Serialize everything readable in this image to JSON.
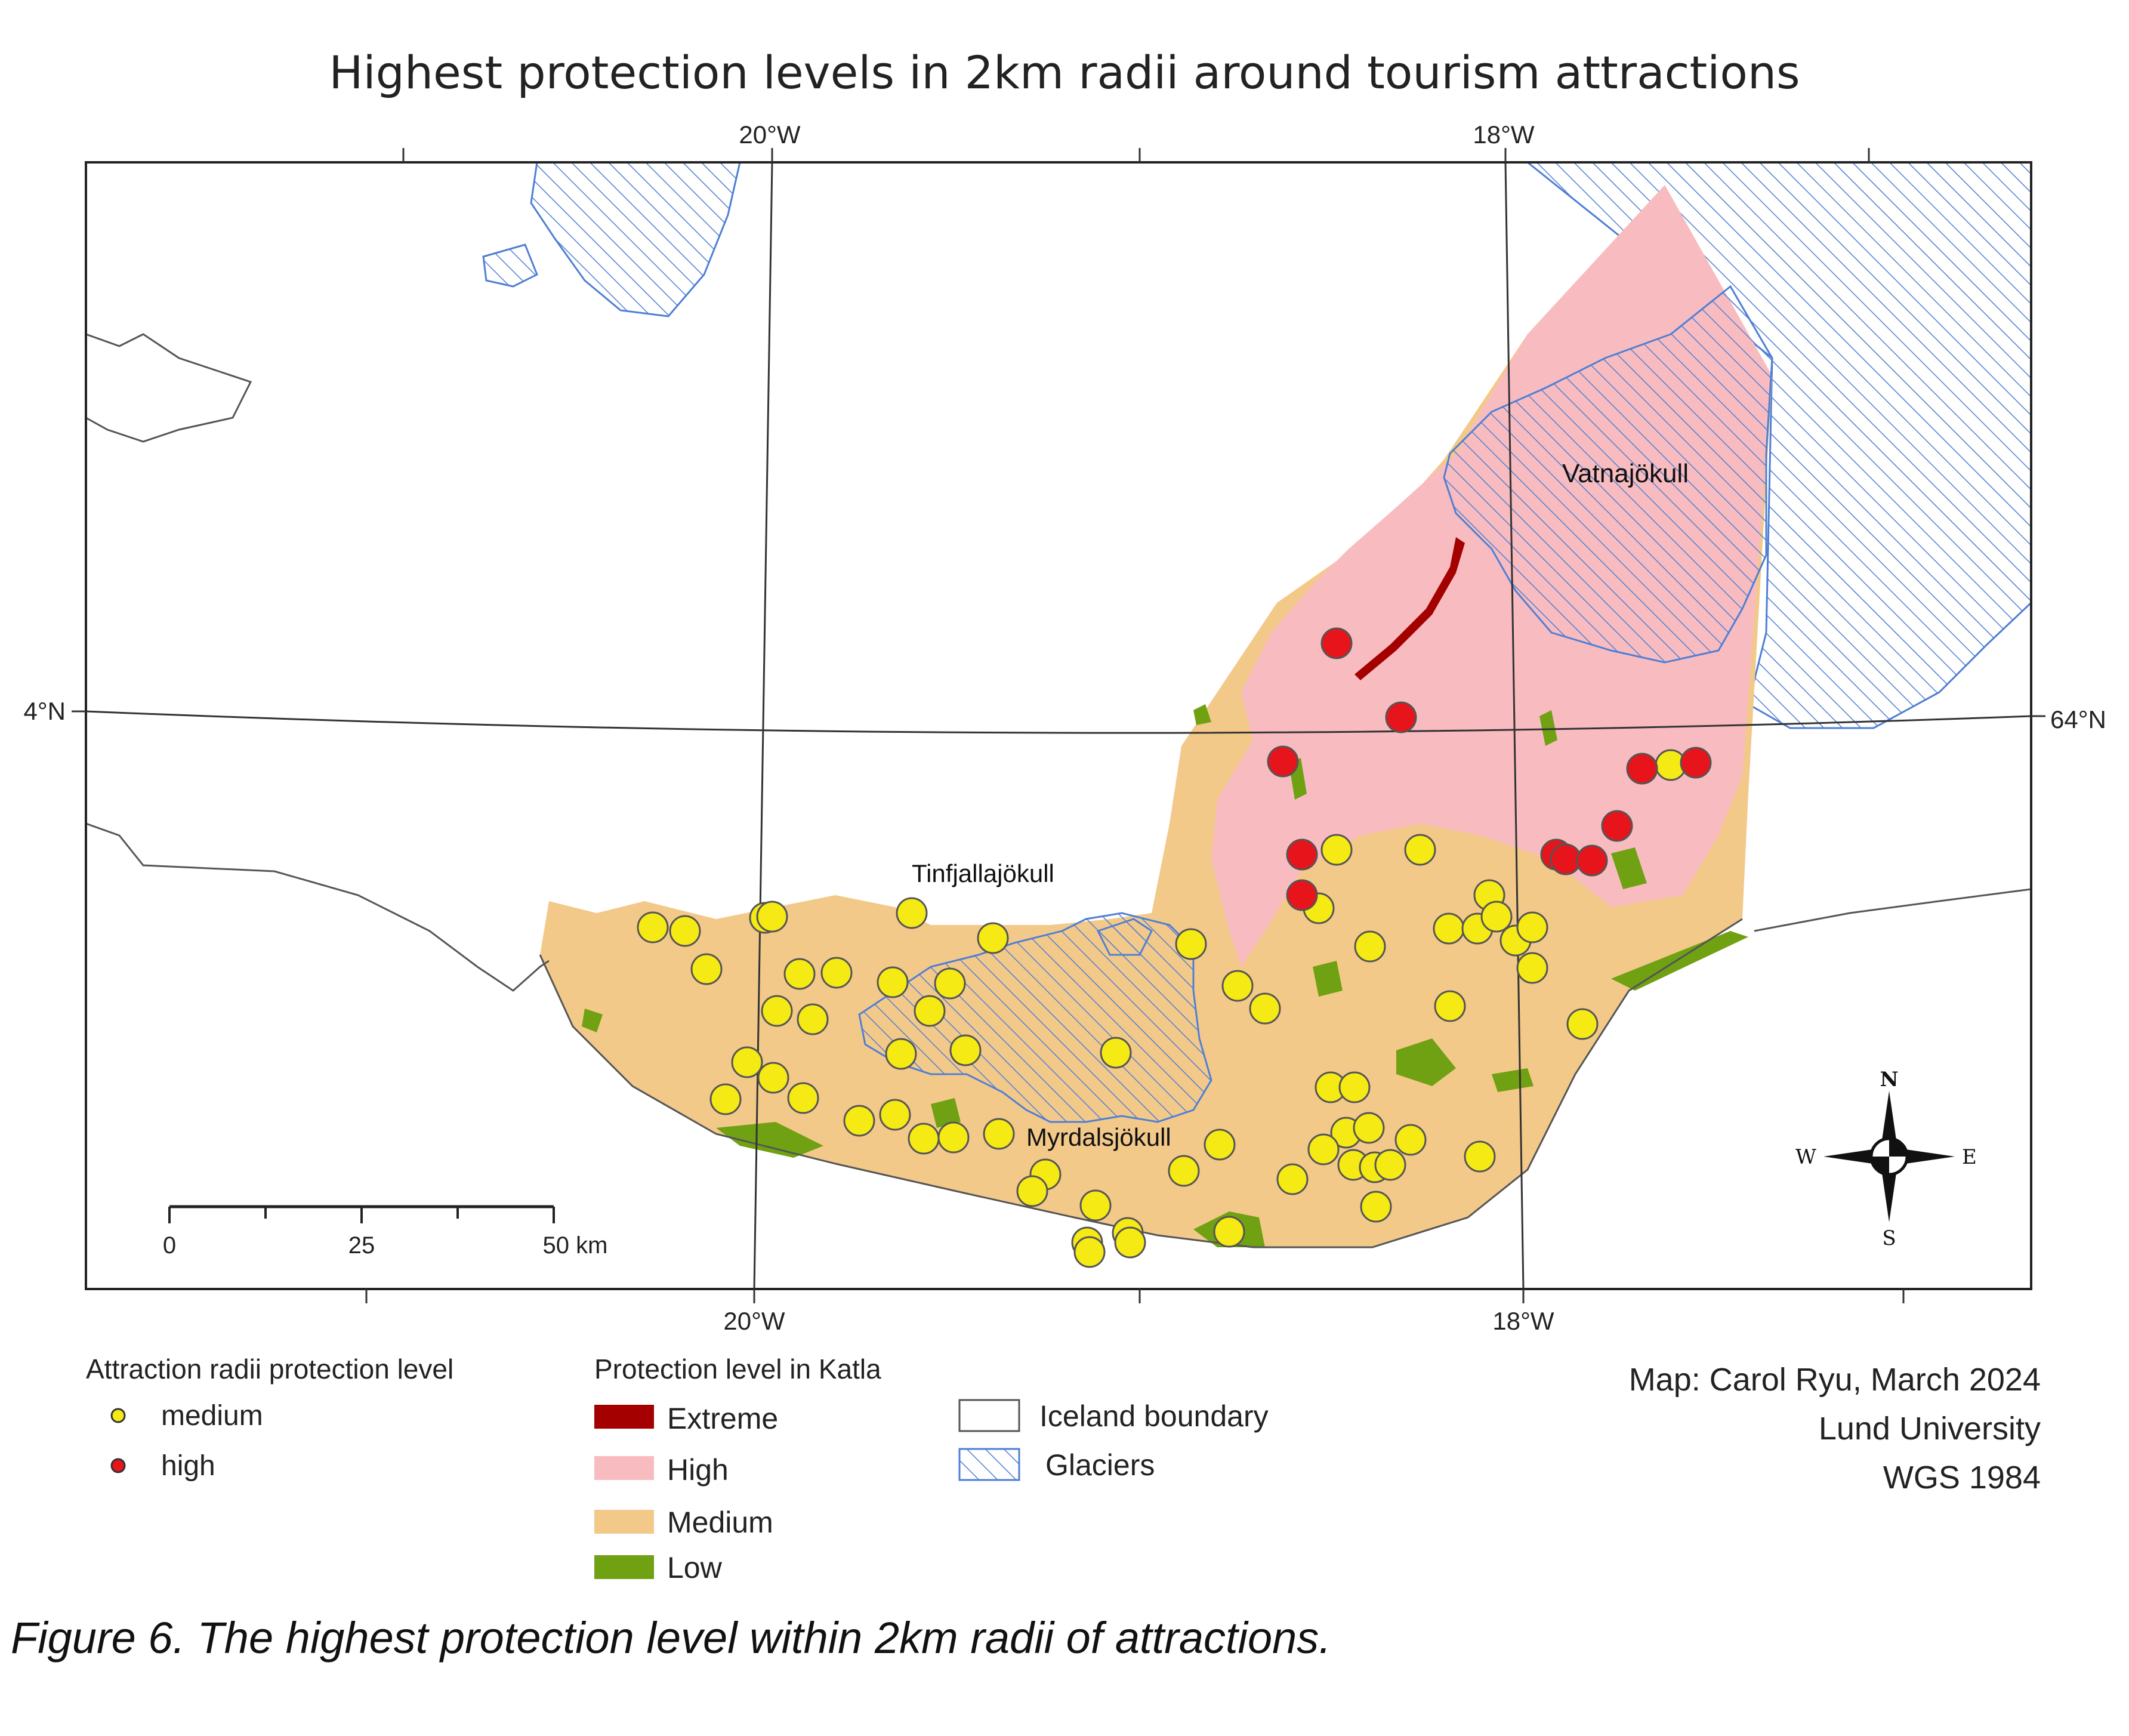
{
  "title": "Highest protection levels in 2km radii around tourism attractions",
  "graticule": {
    "top_labels": [
      "20°W",
      "18°W"
    ],
    "bottom_labels": [
      "20°W",
      "18°W"
    ],
    "left_label": "4°N",
    "right_label": "64°N"
  },
  "place_labels": {
    "vatnajokull": "Vatnajökull",
    "tinfjallajokull": "Tinfjallajökull",
    "myrdalsjokull": "Myrdalsjökull"
  },
  "scale_bar": {
    "labels": [
      "0",
      "25",
      "50 km"
    ]
  },
  "north_arrow": {
    "n": "N",
    "s": "S",
    "e": "E",
    "w": "W"
  },
  "legend_attractions": {
    "title": "Attraction radii protection level",
    "items": [
      {
        "label": "medium",
        "color": "#f5ea14"
      },
      {
        "label": "high",
        "color": "#e8141c"
      }
    ]
  },
  "legend_katla": {
    "title": "Protection level in Katla",
    "items": [
      {
        "label": "Extreme",
        "color": "#a40000"
      },
      {
        "label": "High",
        "color": "#f8bcc0"
      },
      {
        "label": "Medium",
        "color": "#f3c98a"
      },
      {
        "label": "Low",
        "color": "#6fa112"
      }
    ]
  },
  "legend_other": {
    "items": [
      {
        "label": "Iceland boundary"
      },
      {
        "label": "Glaciers"
      }
    ]
  },
  "credits": {
    "line1": "Map: Carol Ryu, March 2024",
    "line2": "Lund University",
    "line3": "WGS 1984"
  },
  "caption": "Figure 6. The highest protection level within 2km radii of attractions.",
  "colors": {
    "medium_point": "#f5ea14",
    "high_point": "#e8141c",
    "glacier_hatch": "#4f7fd4",
    "coast": "#555555"
  }
}
